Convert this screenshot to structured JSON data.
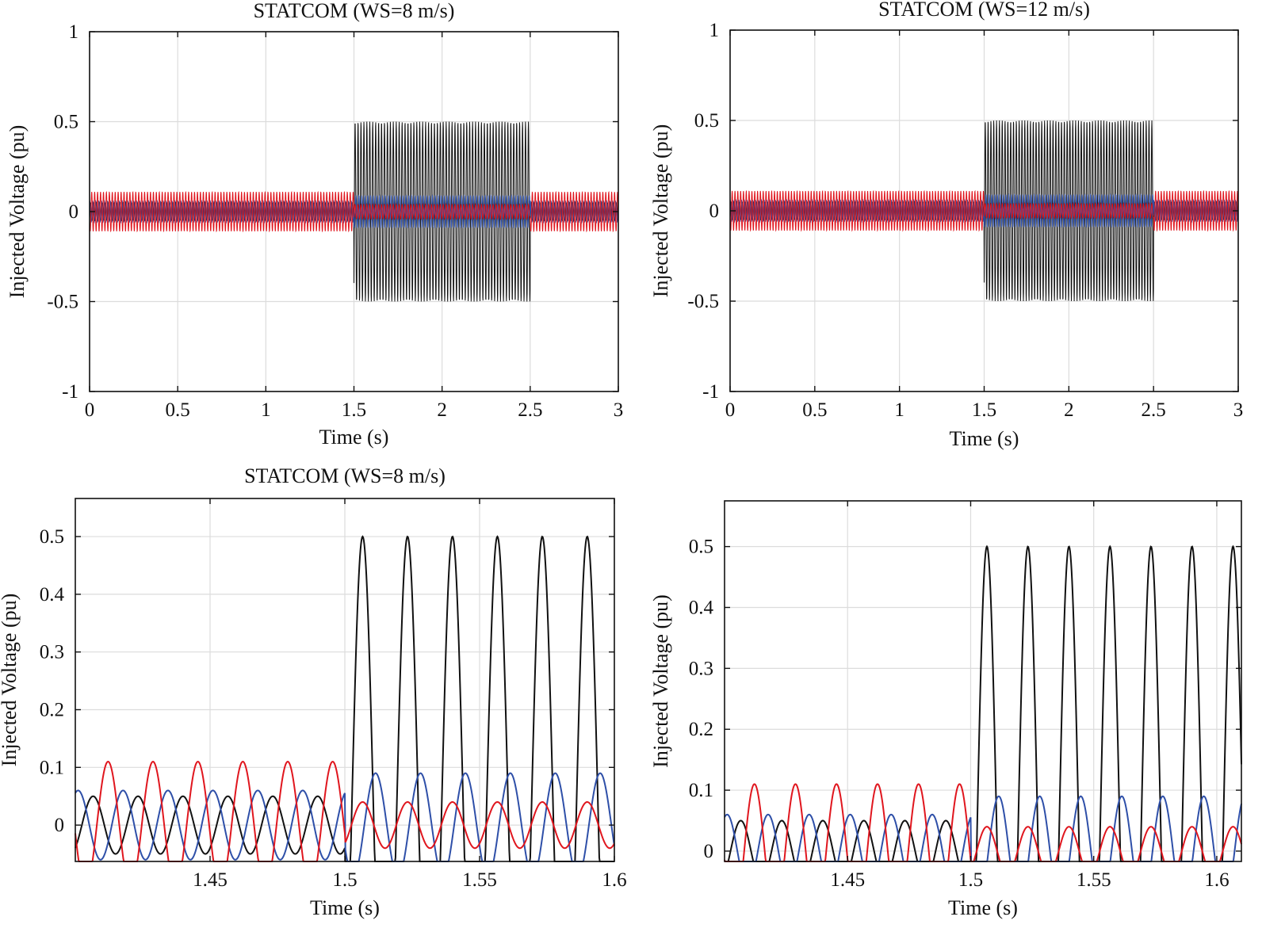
{
  "chart_data": [
    {
      "type": "line",
      "title": "STATCOM (WS=8 m/s)",
      "xlabel": "Time (s)",
      "ylabel": "Injected Voltage (pu)",
      "xlim": [
        0,
        3
      ],
      "ylim": [
        -1,
        1
      ],
      "xticks": [
        "0",
        "0.5",
        "1",
        "1.5",
        "2",
        "2.5",
        "3"
      ],
      "xtick_values": [
        0,
        0.5,
        1,
        1.5,
        2,
        2.5,
        3
      ],
      "yticks": [
        "-1",
        "-0.5",
        "0",
        "0.5",
        "1"
      ],
      "ytick_values": [
        -1,
        -0.5,
        0,
        0.5,
        1
      ],
      "grid": true,
      "frequency_hz": 60,
      "event_interval_s": [
        1.5,
        2.5
      ],
      "series": [
        {
          "color": "#111111",
          "amplitude_normal_pu": 0.05,
          "amplitude_event_pu": 0.5
        },
        {
          "color": "#2e4fa8",
          "amplitude_normal_pu": 0.06,
          "amplitude_event_pu": 0.09
        },
        {
          "color": "#e0161e",
          "amplitude_normal_pu": 0.11,
          "amplitude_event_pu": 0.04
        }
      ]
    },
    {
      "type": "line",
      "title": "STATCOM (WS=12 m/s)",
      "xlabel": "Time (s)",
      "ylabel": "Injected Voltage (pu)",
      "xlim": [
        0,
        3
      ],
      "ylim": [
        -1,
        1
      ],
      "xticks": [
        "0",
        "0.5",
        "1",
        "1.5",
        "2",
        "2.5",
        "3"
      ],
      "xtick_values": [
        0,
        0.5,
        1,
        1.5,
        2,
        2.5,
        3
      ],
      "yticks": [
        "-1",
        "-0.5",
        "0",
        "0.5",
        "1"
      ],
      "ytick_values": [
        -1,
        -0.5,
        0,
        0.5,
        1
      ],
      "grid": true,
      "frequency_hz": 60,
      "event_interval_s": [
        1.5,
        2.5
      ],
      "series": [
        {
          "color": "#111111",
          "amplitude_normal_pu": 0.05,
          "amplitude_event_pu": 0.5
        },
        {
          "color": "#2e4fa8",
          "amplitude_normal_pu": 0.06,
          "amplitude_event_pu": 0.09
        },
        {
          "color": "#e0161e",
          "amplitude_normal_pu": 0.11,
          "amplitude_event_pu": 0.04
        }
      ]
    },
    {
      "type": "line",
      "title": "STATCOM (WS=8 m/s)",
      "xlabel": "Time (s)",
      "ylabel": "Injected Voltage (pu)",
      "xlim": [
        1.4,
        1.6
      ],
      "ylim": [
        -0.063,
        0.566
      ],
      "xticks": [
        "1.45",
        "1.5",
        "1.55",
        "1.6"
      ],
      "xtick_values": [
        1.45,
        1.5,
        1.55,
        1.6
      ],
      "yticks": [
        "0",
        "0.1",
        "0.2",
        "0.3",
        "0.4",
        "0.5"
      ],
      "ytick_values": [
        0,
        0.1,
        0.2,
        0.3,
        0.4,
        0.5
      ],
      "grid": true,
      "frequency_hz": 60,
      "event_interval_s": [
        1.5,
        2.5
      ],
      "series": [
        {
          "color": "#111111",
          "amplitude_normal_pu": 0.05,
          "amplitude_event_pu": 0.5
        },
        {
          "color": "#2e4fa8",
          "amplitude_normal_pu": 0.06,
          "amplitude_event_pu": 0.09
        },
        {
          "color": "#e0161e",
          "amplitude_normal_pu": 0.11,
          "amplitude_event_pu": 0.04
        }
      ]
    },
    {
      "type": "line",
      "title": "",
      "xlabel": "Time (s)",
      "ylabel": "Injected Voltage (pu)",
      "xlim": [
        1.4,
        1.61
      ],
      "ylim": [
        -0.017,
        0.575
      ],
      "xticks": [
        "1.45",
        "1.5",
        "1.55",
        "1.6"
      ],
      "xtick_values": [
        1.45,
        1.5,
        1.55,
        1.6
      ],
      "yticks": [
        "0",
        "0.1",
        "0.2",
        "0.3",
        "0.4",
        "0.5"
      ],
      "ytick_values": [
        0,
        0.1,
        0.2,
        0.3,
        0.4,
        0.5
      ],
      "grid": true,
      "frequency_hz": 60,
      "event_interval_s": [
        1.5,
        2.5
      ],
      "series": [
        {
          "color": "#111111",
          "amplitude_normal_pu": 0.05,
          "amplitude_event_pu": 0.5
        },
        {
          "color": "#2e4fa8",
          "amplitude_normal_pu": 0.06,
          "amplitude_event_pu": 0.09
        },
        {
          "color": "#e0161e",
          "amplitude_normal_pu": 0.11,
          "amplitude_event_pu": 0.04
        }
      ]
    }
  ]
}
